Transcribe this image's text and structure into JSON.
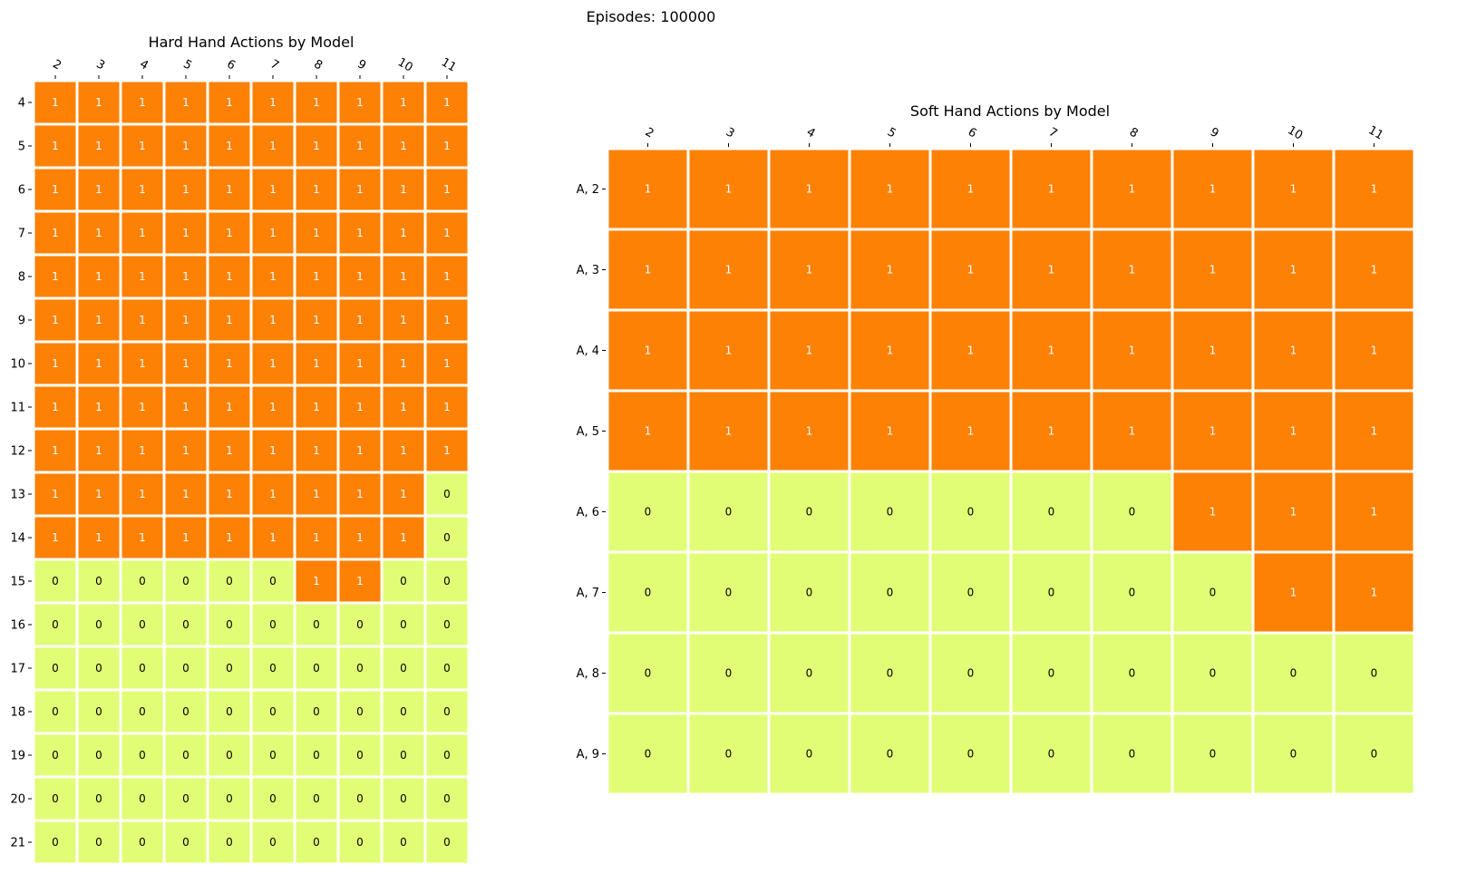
{
  "figure": {
    "suptitle": "Episodes: 100000"
  },
  "colors": {
    "one": "#fd8105",
    "zero": "#e1fd75",
    "label_on_one": "#ffffff",
    "label_on_zero": "#000000",
    "gap": "#ffffff"
  },
  "chart_data": [
    {
      "type": "heatmap",
      "title": "Hard Hand Actions by Model",
      "xlabel": "",
      "ylabel": "",
      "x_categories": [
        "2",
        "3",
        "4",
        "5",
        "6",
        "7",
        "8",
        "9",
        "10",
        "11"
      ],
      "y_categories": [
        "4",
        "5",
        "6",
        "7",
        "8",
        "9",
        "10",
        "11",
        "12",
        "13",
        "14",
        "15",
        "16",
        "17",
        "18",
        "19",
        "20",
        "21"
      ],
      "values": [
        [
          1,
          1,
          1,
          1,
          1,
          1,
          1,
          1,
          1,
          1
        ],
        [
          1,
          1,
          1,
          1,
          1,
          1,
          1,
          1,
          1,
          1
        ],
        [
          1,
          1,
          1,
          1,
          1,
          1,
          1,
          1,
          1,
          1
        ],
        [
          1,
          1,
          1,
          1,
          1,
          1,
          1,
          1,
          1,
          1
        ],
        [
          1,
          1,
          1,
          1,
          1,
          1,
          1,
          1,
          1,
          1
        ],
        [
          1,
          1,
          1,
          1,
          1,
          1,
          1,
          1,
          1,
          1
        ],
        [
          1,
          1,
          1,
          1,
          1,
          1,
          1,
          1,
          1,
          1
        ],
        [
          1,
          1,
          1,
          1,
          1,
          1,
          1,
          1,
          1,
          1
        ],
        [
          1,
          1,
          1,
          1,
          1,
          1,
          1,
          1,
          1,
          1
        ],
        [
          1,
          1,
          1,
          1,
          1,
          1,
          1,
          1,
          1,
          0
        ],
        [
          1,
          1,
          1,
          1,
          1,
          1,
          1,
          1,
          1,
          0
        ],
        [
          0,
          0,
          0,
          0,
          0,
          0,
          1,
          1,
          0,
          0
        ],
        [
          0,
          0,
          0,
          0,
          0,
          0,
          0,
          0,
          0,
          0
        ],
        [
          0,
          0,
          0,
          0,
          0,
          0,
          0,
          0,
          0,
          0
        ],
        [
          0,
          0,
          0,
          0,
          0,
          0,
          0,
          0,
          0,
          0
        ],
        [
          0,
          0,
          0,
          0,
          0,
          0,
          0,
          0,
          0,
          0
        ],
        [
          0,
          0,
          0,
          0,
          0,
          0,
          0,
          0,
          0,
          0
        ],
        [
          0,
          0,
          0,
          0,
          0,
          0,
          0,
          0,
          0,
          0
        ]
      ],
      "annotated": true,
      "x_ticks_position": "top",
      "colorbar": false
    },
    {
      "type": "heatmap",
      "title": "Soft Hand Actions by Model",
      "xlabel": "",
      "ylabel": "",
      "x_categories": [
        "2",
        "3",
        "4",
        "5",
        "6",
        "7",
        "8",
        "9",
        "10",
        "11"
      ],
      "y_categories": [
        "A, 2",
        "A, 3",
        "A, 4",
        "A, 5",
        "A, 6",
        "A, 7",
        "A, 8",
        "A, 9"
      ],
      "values": [
        [
          1,
          1,
          1,
          1,
          1,
          1,
          1,
          1,
          1,
          1
        ],
        [
          1,
          1,
          1,
          1,
          1,
          1,
          1,
          1,
          1,
          1
        ],
        [
          1,
          1,
          1,
          1,
          1,
          1,
          1,
          1,
          1,
          1
        ],
        [
          1,
          1,
          1,
          1,
          1,
          1,
          1,
          1,
          1,
          1
        ],
        [
          0,
          0,
          0,
          0,
          0,
          0,
          0,
          1,
          1,
          1
        ],
        [
          0,
          0,
          0,
          0,
          0,
          0,
          0,
          0,
          1,
          1
        ],
        [
          0,
          0,
          0,
          0,
          0,
          0,
          0,
          0,
          0,
          0
        ],
        [
          0,
          0,
          0,
          0,
          0,
          0,
          0,
          0,
          0,
          0
        ]
      ],
      "annotated": true,
      "x_ticks_position": "top",
      "colorbar": false
    }
  ]
}
